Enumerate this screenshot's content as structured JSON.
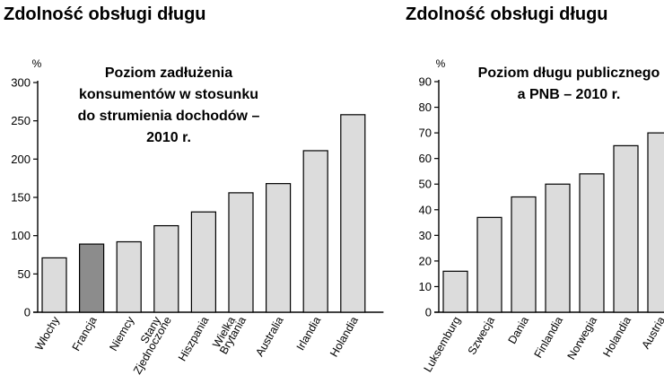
{
  "colors": {
    "bar": "#dcdcdc",
    "bar_highlight": "#8c8c8c",
    "stroke": "#000000"
  },
  "chart_data": [
    {
      "type": "bar",
      "title": "Zdolność obsługi długu",
      "subtitle": [
        "Poziom zadłużenia",
        "konsumentów w stosunku",
        "do strumienia dochodów –",
        "2010 r."
      ],
      "ylabel": "%",
      "ylim": [
        0,
        300
      ],
      "yticks": [
        0,
        50,
        100,
        150,
        200,
        250,
        300
      ],
      "grid": false,
      "categories": [
        [
          "Włochy"
        ],
        [
          "Francja"
        ],
        [
          "Niemcy"
        ],
        [
          "Stany",
          "Zjednoczone"
        ],
        [
          "Hiszpania"
        ],
        [
          "Wielka",
          "Brytania"
        ],
        [
          "Australia"
        ],
        [
          "Irlandia"
        ],
        [
          "Holandia"
        ]
      ],
      "values": [
        71,
        89,
        92,
        113,
        131,
        156,
        168,
        211,
        258
      ],
      "highlight_index": 1
    },
    {
      "type": "bar",
      "title": "Zdolność obsługi długu",
      "subtitle": [
        "Poziom długu publicznego",
        "a PNB – 2010 r."
      ],
      "ylabel": "%",
      "ylim": [
        0,
        90
      ],
      "yticks": [
        0,
        10,
        20,
        30,
        40,
        50,
        60,
        70,
        80,
        90
      ],
      "grid": false,
      "categories": [
        [
          "Luksemburg"
        ],
        [
          "Szwecja"
        ],
        [
          "Dania"
        ],
        [
          "Finlandia"
        ],
        [
          "Norwegia"
        ],
        [
          "Holandia"
        ],
        [
          "Austria"
        ]
      ],
      "values": [
        16,
        37,
        45,
        50,
        54,
        65,
        70
      ],
      "highlight_index": -1
    }
  ]
}
